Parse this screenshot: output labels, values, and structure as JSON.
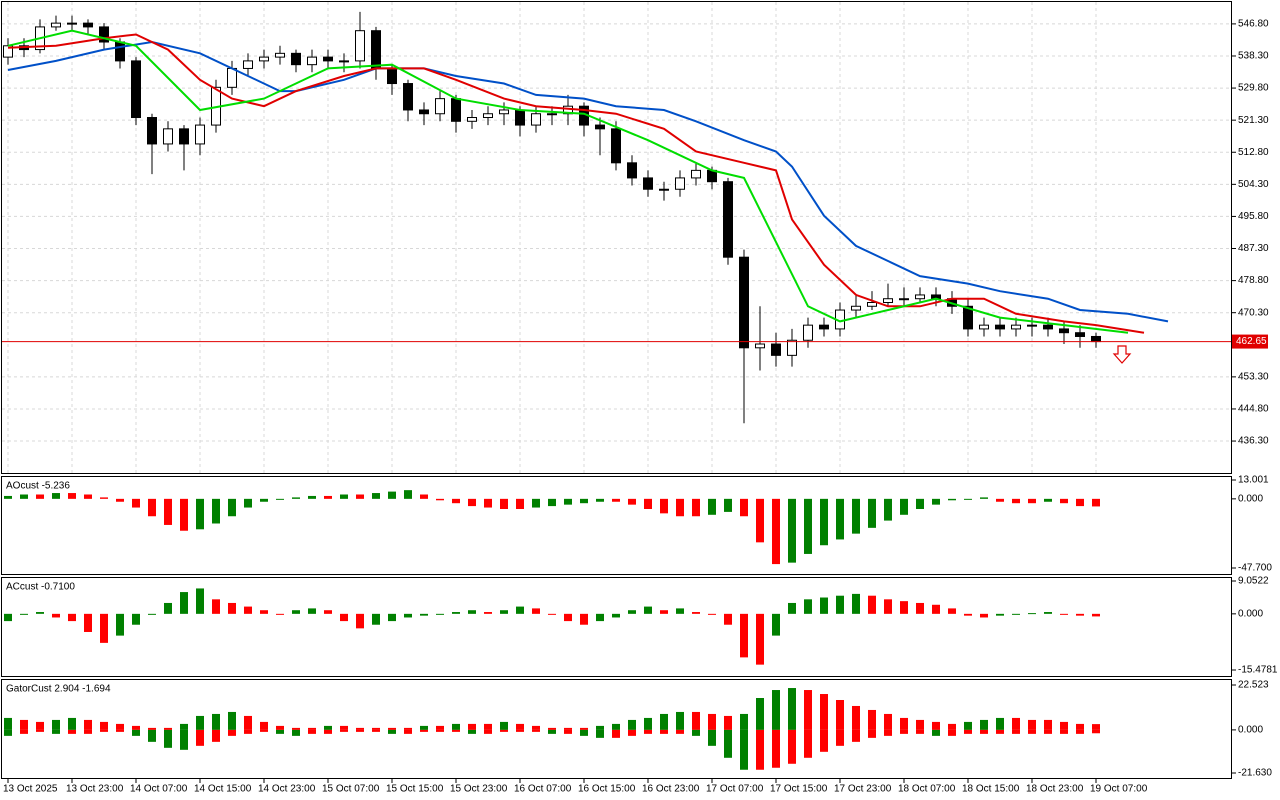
{
  "chart_data": [
    {
      "type": "candlestick",
      "ylim": [
        428.1,
        552.6
      ],
      "yticks": [
        {
          "value": 546.8,
          "label": "546.80"
        },
        {
          "value": 538.3,
          "label": "538.30"
        },
        {
          "value": 529.8,
          "label": "529.80"
        },
        {
          "value": 521.3,
          "label": "521.30"
        },
        {
          "value": 512.8,
          "label": "512.80"
        },
        {
          "value": 504.3,
          "label": "504.30"
        },
        {
          "value": 495.8,
          "label": "495.80"
        },
        {
          "value": 487.3,
          "label": "487.30"
        },
        {
          "value": 478.8,
          "label": "478.80"
        },
        {
          "value": 470.3,
          "label": "470.30"
        },
        {
          "value": 453.3,
          "label": "453.30"
        },
        {
          "value": 444.8,
          "label": "444.80"
        },
        {
          "value": 436.3,
          "label": "436.30"
        }
      ],
      "grid": true,
      "xticks": [
        {
          "value": 0,
          "label": "13 Oct 2025"
        },
        {
          "value": 4,
          "label": "13 Oct 23:00"
        },
        {
          "value": 8,
          "label": "14 Oct 07:00"
        },
        {
          "value": 12,
          "label": "14 Oct 15:00"
        },
        {
          "value": 16,
          "label": "14 Oct 23:00"
        },
        {
          "value": 20,
          "label": "15 Oct 07:00"
        },
        {
          "value": 24,
          "label": "15 Oct 15:00"
        },
        {
          "value": 28,
          "label": "15 Oct 23:00"
        },
        {
          "value": 32,
          "label": "16 Oct 07:00"
        },
        {
          "value": 36,
          "label": "16 Oct 15:00"
        },
        {
          "value": 40,
          "label": "16 Oct 23:00"
        },
        {
          "value": 44,
          "label": "17 Oct 07:00"
        },
        {
          "value": 48,
          "label": "17 Oct 15:00"
        },
        {
          "value": 52,
          "label": "17 Oct 23:00"
        },
        {
          "value": 56,
          "label": "18 Oct 07:00"
        },
        {
          "value": 60,
          "label": "18 Oct 15:00"
        },
        {
          "value": 64,
          "label": "18 Oct 23:00"
        },
        {
          "value": 68,
          "label": "19 Oct 07:00"
        }
      ],
      "open": [
        538,
        541,
        540,
        546,
        547,
        547,
        546,
        542,
        537,
        522,
        515,
        519,
        515,
        520,
        530,
        535,
        537,
        538,
        539,
        536,
        538,
        537,
        537,
        545,
        535,
        531,
        524,
        523,
        527,
        521,
        522,
        523,
        524,
        520,
        523,
        523,
        525,
        520,
        519,
        510,
        506,
        503,
        503,
        506,
        508,
        505,
        485,
        461,
        462,
        459,
        463,
        467,
        466,
        471,
        472,
        473,
        474,
        474,
        475,
        474,
        472,
        466,
        467,
        466,
        467,
        467,
        466,
        465,
        464
      ],
      "high": [
        543,
        543,
        548,
        549,
        549,
        548,
        547,
        543,
        538,
        523,
        521,
        520,
        522,
        532,
        537,
        539,
        540,
        541,
        540,
        540,
        540,
        539,
        550,
        546,
        536,
        532,
        526,
        529,
        528,
        524,
        525,
        526,
        525,
        525,
        525,
        528,
        526,
        522,
        521,
        512,
        508,
        505,
        508,
        510,
        509,
        506,
        487,
        472,
        465,
        466,
        469,
        469,
        473,
        475,
        476,
        478,
        477,
        477,
        477,
        476,
        474,
        469,
        469,
        469,
        469,
        469,
        468,
        467,
        465
      ],
      "low": [
        536,
        538,
        539,
        545,
        545,
        544,
        540,
        535,
        520,
        507,
        513,
        508,
        512,
        518,
        528,
        533,
        535,
        536,
        534,
        534,
        535,
        534,
        535,
        532,
        528,
        521,
        520,
        521,
        518,
        519,
        520,
        520,
        517,
        518,
        520,
        520,
        517,
        512,
        508,
        504,
        501,
        500,
        501,
        504,
        503,
        483,
        441,
        455,
        456,
        456,
        461,
        464,
        464,
        469,
        471,
        472,
        472,
        473,
        472,
        470,
        464,
        464,
        464,
        464,
        464,
        464,
        462,
        461,
        461
      ],
      "close": [
        541,
        540,
        546,
        547,
        547,
        546,
        542,
        537,
        522,
        515,
        519,
        515,
        520,
        530,
        535,
        537,
        538,
        539,
        536,
        538,
        537,
        537,
        545,
        535,
        531,
        524,
        523,
        527,
        521,
        522,
        523,
        524,
        520,
        523,
        523,
        525,
        520,
        519,
        510,
        506,
        503,
        503,
        506,
        508,
        505,
        485,
        461,
        462,
        459,
        463,
        467,
        466,
        471,
        472,
        473,
        474,
        474,
        475,
        474,
        472,
        466,
        467,
        466,
        467,
        467,
        466,
        465,
        464,
        462.65
      ],
      "bull_color": "#ffffff",
      "bear_color": "#000000",
      "lines": [
        {
          "color": "#0050c8",
          "x": [
            0,
            3,
            6,
            9,
            12,
            15,
            17,
            18,
            21,
            23,
            26,
            28,
            31,
            33,
            36,
            38,
            41,
            43,
            46,
            48,
            49,
            51,
            53,
            55,
            57,
            60,
            62,
            65,
            67,
            70,
            72.5
          ],
          "values": [
            534.6,
            537,
            540,
            542,
            539,
            533,
            529,
            529,
            532,
            535,
            535,
            533,
            531,
            528,
            527,
            525,
            524,
            521,
            516,
            513,
            509,
            496,
            488,
            484,
            480,
            478,
            476,
            474,
            471,
            470,
            468
          ]
        },
        {
          "color": "#e00000",
          "x": [
            0,
            3,
            6,
            8,
            10,
            12,
            14,
            16,
            18,
            21,
            23,
            26,
            28,
            31,
            33,
            36,
            38,
            41,
            43,
            46,
            48,
            49,
            51,
            53,
            55,
            57,
            59,
            61,
            63,
            66,
            68,
            71
          ],
          "values": [
            540.5,
            541,
            543,
            544,
            540,
            532,
            527,
            525,
            529,
            533,
            535,
            535,
            532,
            527,
            525,
            524,
            523,
            519,
            513,
            510,
            508,
            495,
            483,
            475,
            472,
            472,
            474,
            474,
            470,
            468,
            467,
            465
          ]
        },
        {
          "color": "#00dd00",
          "x": [
            0,
            4,
            8,
            12,
            16,
            20,
            24,
            28,
            32,
            36,
            40,
            44,
            46,
            48,
            50,
            52,
            54,
            58,
            62,
            66,
            70
          ],
          "values": [
            541,
            545,
            541,
            524,
            527,
            535,
            536,
            527,
            524,
            523,
            516,
            508,
            506,
            489,
            472,
            468,
            470,
            474,
            469,
            467,
            465
          ]
        }
      ],
      "last_price": 462.65,
      "last_price_color": "#e00000"
    },
    {
      "type": "histogram",
      "title": "AOcust -5.236",
      "ylim": [
        -47.7,
        13.001
      ],
      "yticks": [
        13.001,
        {
          "value": 0,
          "label": "0.000"
        },
        {
          "value": -47.7,
          "label": "-47.700"
        }
      ],
      "up_color": "#008000",
      "down_color": "#ff0000",
      "values": [
        2,
        3,
        3,
        4,
        4,
        3,
        1,
        -2,
        -6,
        -12,
        -18,
        -22,
        -21,
        -17,
        -12,
        -6,
        -2,
        0,
        1,
        2,
        2,
        3,
        3,
        4,
        5,
        6,
        3,
        -1,
        -3,
        -5,
        -6,
        -7,
        -7,
        -6,
        -5,
        -4,
        -3,
        -2,
        -2,
        -4,
        -7,
        -10,
        -12,
        -12,
        -11,
        -9,
        -12,
        -30,
        -45,
        -44,
        -38,
        -32,
        -28,
        -24,
        -20,
        -15,
        -11,
        -7,
        -4,
        -1,
        0,
        1,
        -2,
        -3,
        -3,
        -2,
        -3,
        -5,
        -5.236
      ]
    },
    {
      "type": "histogram",
      "title": "ACcust -0.7100",
      "ylim": [
        -15.4781,
        9.0522
      ],
      "yticks": [
        9.0522,
        {
          "value": 0,
          "label": "0.000"
        },
        -15.4781
      ],
      "up_color": "#008000",
      "down_color": "#ff0000",
      "values": [
        -2,
        0,
        0.5,
        -1,
        -2,
        -5,
        -8,
        -6,
        -3,
        0,
        3,
        6,
        7,
        4,
        3,
        2,
        1,
        0,
        1,
        1.5,
        1,
        -2,
        -4,
        -3,
        -2,
        -1,
        -0.5,
        0,
        0.5,
        1,
        0.5,
        1,
        2,
        1.5,
        0,
        -2,
        -3,
        -2,
        -1,
        1,
        2,
        1,
        1.5,
        0.5,
        0,
        -3,
        -12,
        -14,
        -6,
        3,
        4,
        4.5,
        5,
        5.5,
        5,
        4,
        3.5,
        3,
        2.5,
        1.5,
        -0.5,
        -1,
        -0.5,
        0,
        0.2,
        0.5,
        0,
        -0.5,
        -0.71
      ]
    },
    {
      "type": "gator",
      "title": "GatorCust 2.904 -1.694",
      "ylim": [
        -21.63,
        22.523
      ],
      "yticks": [
        22.523,
        {
          "value": 0,
          "label": "0.000"
        },
        {
          "value": -21.63,
          "label": "-21.630"
        }
      ],
      "up_color": "#008000",
      "down_color": "#ff0000",
      "series": [
        {
          "values": [
            6,
            5,
            4,
            5,
            6,
            5,
            4,
            3,
            2,
            1,
            1,
            3,
            7,
            8,
            9,
            7,
            4,
            2,
            1,
            1,
            2,
            2,
            1,
            1,
            1,
            1,
            2,
            2,
            3,
            3,
            3,
            4,
            3,
            2,
            1,
            1,
            1,
            2,
            3,
            5,
            6,
            8,
            9,
            9,
            8,
            7,
            8,
            16,
            20,
            21,
            20,
            18,
            15,
            12,
            10,
            8,
            6,
            5,
            4,
            3,
            4,
            5,
            6,
            6,
            5,
            5,
            4,
            3,
            2.904
          ]
        },
        {
          "values": [
            -3,
            -2,
            -1,
            -2,
            -2,
            -2,
            -1,
            -1,
            -3,
            -6,
            -9,
            -10,
            -8,
            -6,
            -3,
            -2,
            -1,
            -2,
            -3,
            -2,
            -2,
            -1,
            -1,
            -1,
            -2,
            -2,
            -1,
            -1,
            -1,
            -2,
            -2,
            -1,
            -1,
            -1,
            -2,
            -2,
            -3,
            -4,
            -4,
            -3,
            -2,
            -2,
            -2,
            -3,
            -8,
            -14,
            -20,
            -20,
            -19,
            -17,
            -14,
            -11,
            -8,
            -6,
            -4,
            -3,
            -2,
            -2,
            -3,
            -3,
            -2,
            -2,
            -2,
            -2,
            -2,
            -2,
            -2,
            -2,
            -1.694
          ]
        }
      ]
    }
  ]
}
